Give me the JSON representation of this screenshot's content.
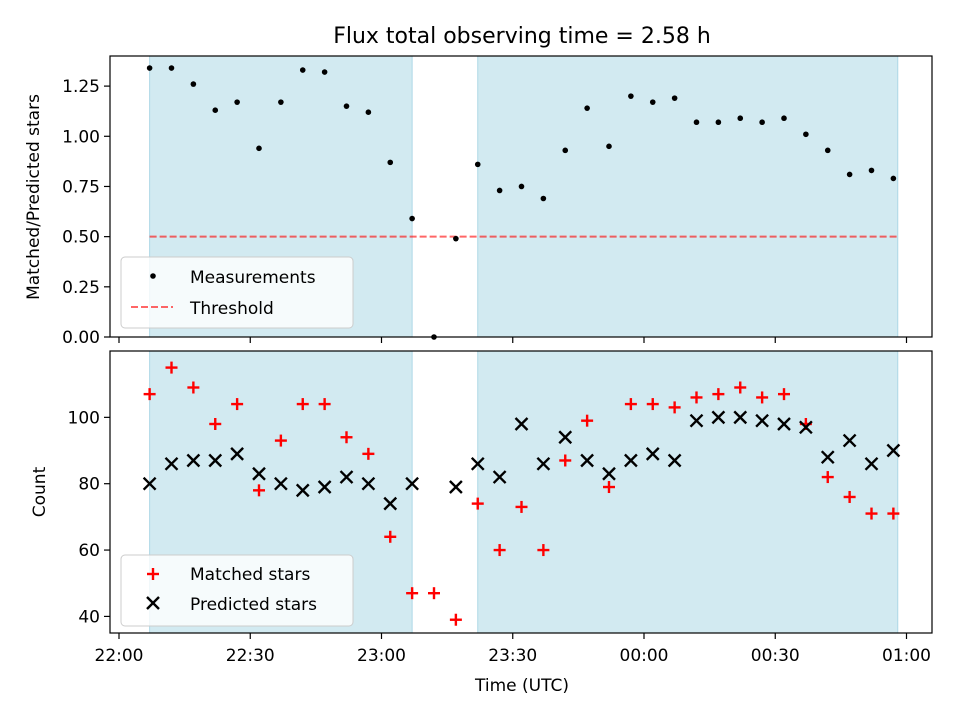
{
  "chart_data": [
    {
      "type": "scatter",
      "title": "Flux total observing time = 2.58 h",
      "xlabel": "",
      "ylabel": "Matched/Predicted stars",
      "ylim": [
        0,
        1.4
      ],
      "yticks": [
        "0.00",
        "0.25",
        "0.50",
        "0.75",
        "1.00",
        "1.25"
      ],
      "ytick_values": [
        0,
        0.25,
        0.5,
        0.75,
        1.0,
        1.25
      ],
      "xlim": [
        "22:00",
        "01:00"
      ],
      "shaded_intervals": [
        [
          "22:07",
          "23:07"
        ],
        [
          "23:22",
          "00:58"
        ]
      ],
      "shade_color": "#add8e6",
      "threshold": {
        "name": "Threshold",
        "value": 0.5,
        "x_range": [
          "22:07",
          "00:58"
        ],
        "color": "#ff0000",
        "style": "dashed"
      },
      "series": [
        {
          "name": "Measurements",
          "marker": "dot",
          "color": "#000000",
          "x": [
            "22:07",
            "22:12",
            "22:17",
            "22:22",
            "22:27",
            "22:32",
            "22:37",
            "22:42",
            "22:47",
            "22:52",
            "22:57",
            "23:02",
            "23:07",
            "23:12",
            "23:17",
            "23:22",
            "23:27",
            "23:32",
            "23:37",
            "23:42",
            "23:47",
            "23:52",
            "23:57",
            "00:02",
            "00:07",
            "00:12",
            "00:17",
            "00:22",
            "00:27",
            "00:32",
            "00:37",
            "00:42",
            "00:47",
            "00:52",
            "00:57"
          ],
          "values": [
            1.34,
            1.34,
            1.26,
            1.13,
            1.17,
            0.94,
            1.17,
            1.33,
            1.32,
            1.15,
            1.12,
            0.87,
            0.59,
            0.0,
            0.49,
            0.86,
            0.73,
            0.75,
            0.69,
            0.93,
            1.14,
            0.95,
            1.2,
            1.17,
            1.19,
            1.07,
            1.07,
            1.09,
            1.07,
            1.09,
            1.01,
            0.93,
            0.81,
            0.83,
            0.79
          ]
        }
      ],
      "legend": {
        "position": "lower-left",
        "entries": [
          "Measurements",
          "Threshold"
        ]
      }
    },
    {
      "type": "scatter",
      "title": "",
      "xlabel": "Time (UTC)",
      "ylabel": "Count",
      "ylim": [
        35,
        120
      ],
      "yticks": [
        "40",
        "60",
        "80",
        "100"
      ],
      "ytick_values": [
        40,
        60,
        80,
        100
      ],
      "xlim": [
        "22:00",
        "01:00"
      ],
      "xticks": [
        "22:00",
        "22:30",
        "23:00",
        "23:30",
        "00:00",
        "00:30",
        "01:00"
      ],
      "shaded_intervals": [
        [
          "22:07",
          "23:07"
        ],
        [
          "23:22",
          "00:58"
        ]
      ],
      "shade_color": "#add8e6",
      "series": [
        {
          "name": "Matched stars",
          "marker": "plus",
          "color": "#ff0000",
          "x": [
            "22:07",
            "22:12",
            "22:17",
            "22:22",
            "22:27",
            "22:32",
            "22:37",
            "22:42",
            "22:47",
            "22:52",
            "22:57",
            "23:02",
            "23:07",
            "23:12",
            "23:17",
            "23:22",
            "23:27",
            "23:32",
            "23:37",
            "23:42",
            "23:47",
            "23:52",
            "23:57",
            "00:02",
            "00:07",
            "00:12",
            "00:17",
            "00:22",
            "00:27",
            "00:32",
            "00:37",
            "00:42",
            "00:47",
            "00:52",
            "00:57"
          ],
          "values": [
            107,
            115,
            109,
            98,
            104,
            78,
            93,
            104,
            104,
            94,
            89,
            64,
            47,
            47,
            39,
            74,
            60,
            73,
            60,
            87,
            99,
            79,
            104,
            104,
            103,
            106,
            107,
            109,
            106,
            107,
            98,
            82,
            76,
            71,
            71
          ]
        },
        {
          "name": "Predicted stars",
          "marker": "x",
          "color": "#000000",
          "x": [
            "22:07",
            "22:12",
            "22:17",
            "22:22",
            "22:27",
            "22:32",
            "22:37",
            "22:42",
            "22:47",
            "22:52",
            "22:57",
            "23:02",
            "23:07",
            "23:17",
            "23:22",
            "23:27",
            "23:32",
            "23:37",
            "23:42",
            "23:47",
            "23:52",
            "23:57",
            "00:02",
            "00:07",
            "00:12",
            "00:17",
            "00:22",
            "00:27",
            "00:32",
            "00:37",
            "00:42",
            "00:47",
            "00:52",
            "00:57"
          ],
          "values": [
            80,
            86,
            87,
            87,
            89,
            83,
            80,
            78,
            79,
            82,
            80,
            74,
            80,
            79,
            86,
            82,
            98,
            86,
            94,
            87,
            83,
            87,
            89,
            87,
            99,
            100,
            100,
            99,
            98,
            97,
            88,
            93,
            86,
            90
          ]
        }
      ],
      "legend": {
        "position": "lower-left",
        "entries": [
          "Matched stars",
          "Predicted stars"
        ]
      }
    }
  ]
}
